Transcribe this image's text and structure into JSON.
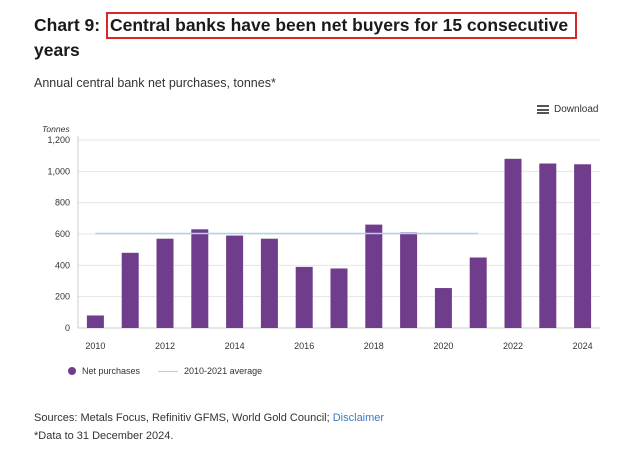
{
  "title": {
    "prefix": "Chart 9: ",
    "highlight": "Central banks have been net buyers for 15 consecutive",
    "line2": "years"
  },
  "subtitle": "Annual central bank net purchases, tonnes*",
  "download_label": "Download",
  "sources": {
    "text": "Sources: Metals Focus, Refinitiv GFMS, World Gold Council; ",
    "link": "Disclaimer"
  },
  "footnote": "*Data to 31 December 2024.",
  "colors": {
    "bar": "#6f3d8c",
    "average": "#a9d4ee",
    "title_box": "#d62828"
  },
  "chart_data": {
    "type": "bar",
    "ylabel": "Tonnes",
    "categories": [
      "2010",
      "2011",
      "2012",
      "2013",
      "2014",
      "2015",
      "2016",
      "2017",
      "2018",
      "2019",
      "2020",
      "2021",
      "2022",
      "2023",
      "2024"
    ],
    "x_tick_labels": [
      "2010",
      "2012",
      "2014",
      "2016",
      "2018",
      "2020",
      "2022",
      "2024"
    ],
    "series": [
      {
        "name": "Net purchases",
        "values": [
          80,
          480,
          570,
          630,
          590,
          570,
          390,
          380,
          660,
          610,
          255,
          450,
          1080,
          1050,
          1045
        ]
      }
    ],
    "reference_lines": [
      {
        "name": "2010-2021 average",
        "value": 603,
        "from": "2010",
        "to": "2021"
      }
    ],
    "y_ticks": [
      "0",
      "200",
      "400",
      "600",
      "800",
      "1,000",
      "1,200"
    ],
    "ylim": [
      0,
      1200
    ],
    "grid": true,
    "legend_position": "bottom-left"
  }
}
